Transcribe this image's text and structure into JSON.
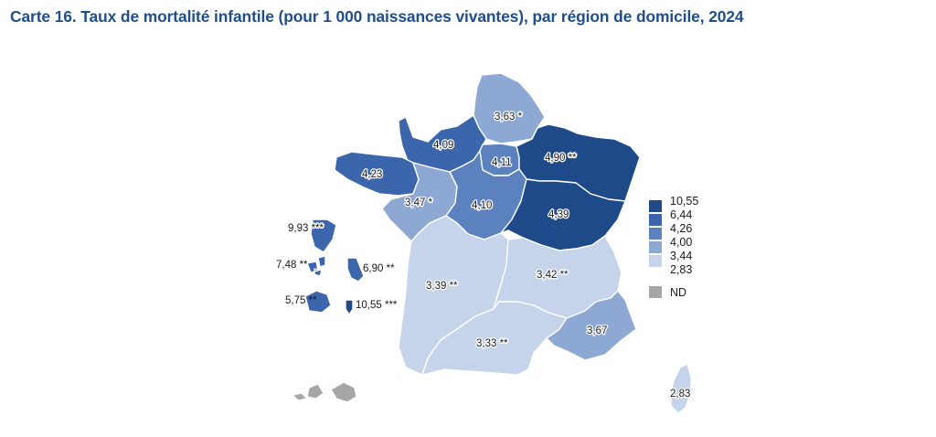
{
  "title": "Carte 16. Taux de mortalité infantile (pour 1 000 naissances vivantes), par région de domicile, 2024",
  "colors": {
    "class1": "#1f4a8a",
    "class2": "#3c66ac",
    "class3": "#5b82bf",
    "class4": "#8ea8d4",
    "class5": "#c5d4ea",
    "nd": "#a6a6a6",
    "title": "#1f4e8c"
  },
  "legend": {
    "breaks": [
      "10,55",
      "6,44",
      "4,26",
      "4,00",
      "3,44",
      "2,83"
    ],
    "nd_label": "ND"
  },
  "regions": {
    "hauts_de_france": "3,63 *",
    "normandie": "4,09",
    "ile_de_france": "4,11",
    "grand_est": "4,90 **",
    "bretagne": "4,23",
    "pays_de_la_loire": "3,47 *",
    "centre_val_de_loire": "4,10",
    "bourgogne_franche_comte": "4,39",
    "nouvelle_aquitaine": "3,39 **",
    "auvergne_rhone_alpes": "3,42 **",
    "occitanie": "3,33 **",
    "paca": "3,67",
    "corse": "2,83",
    "guyane": "9,93 ***",
    "guadeloupe": "7,48 **",
    "martinique": "6,90 **",
    "reunion": "5,75 **",
    "mayotte": "10,55 ***"
  }
}
